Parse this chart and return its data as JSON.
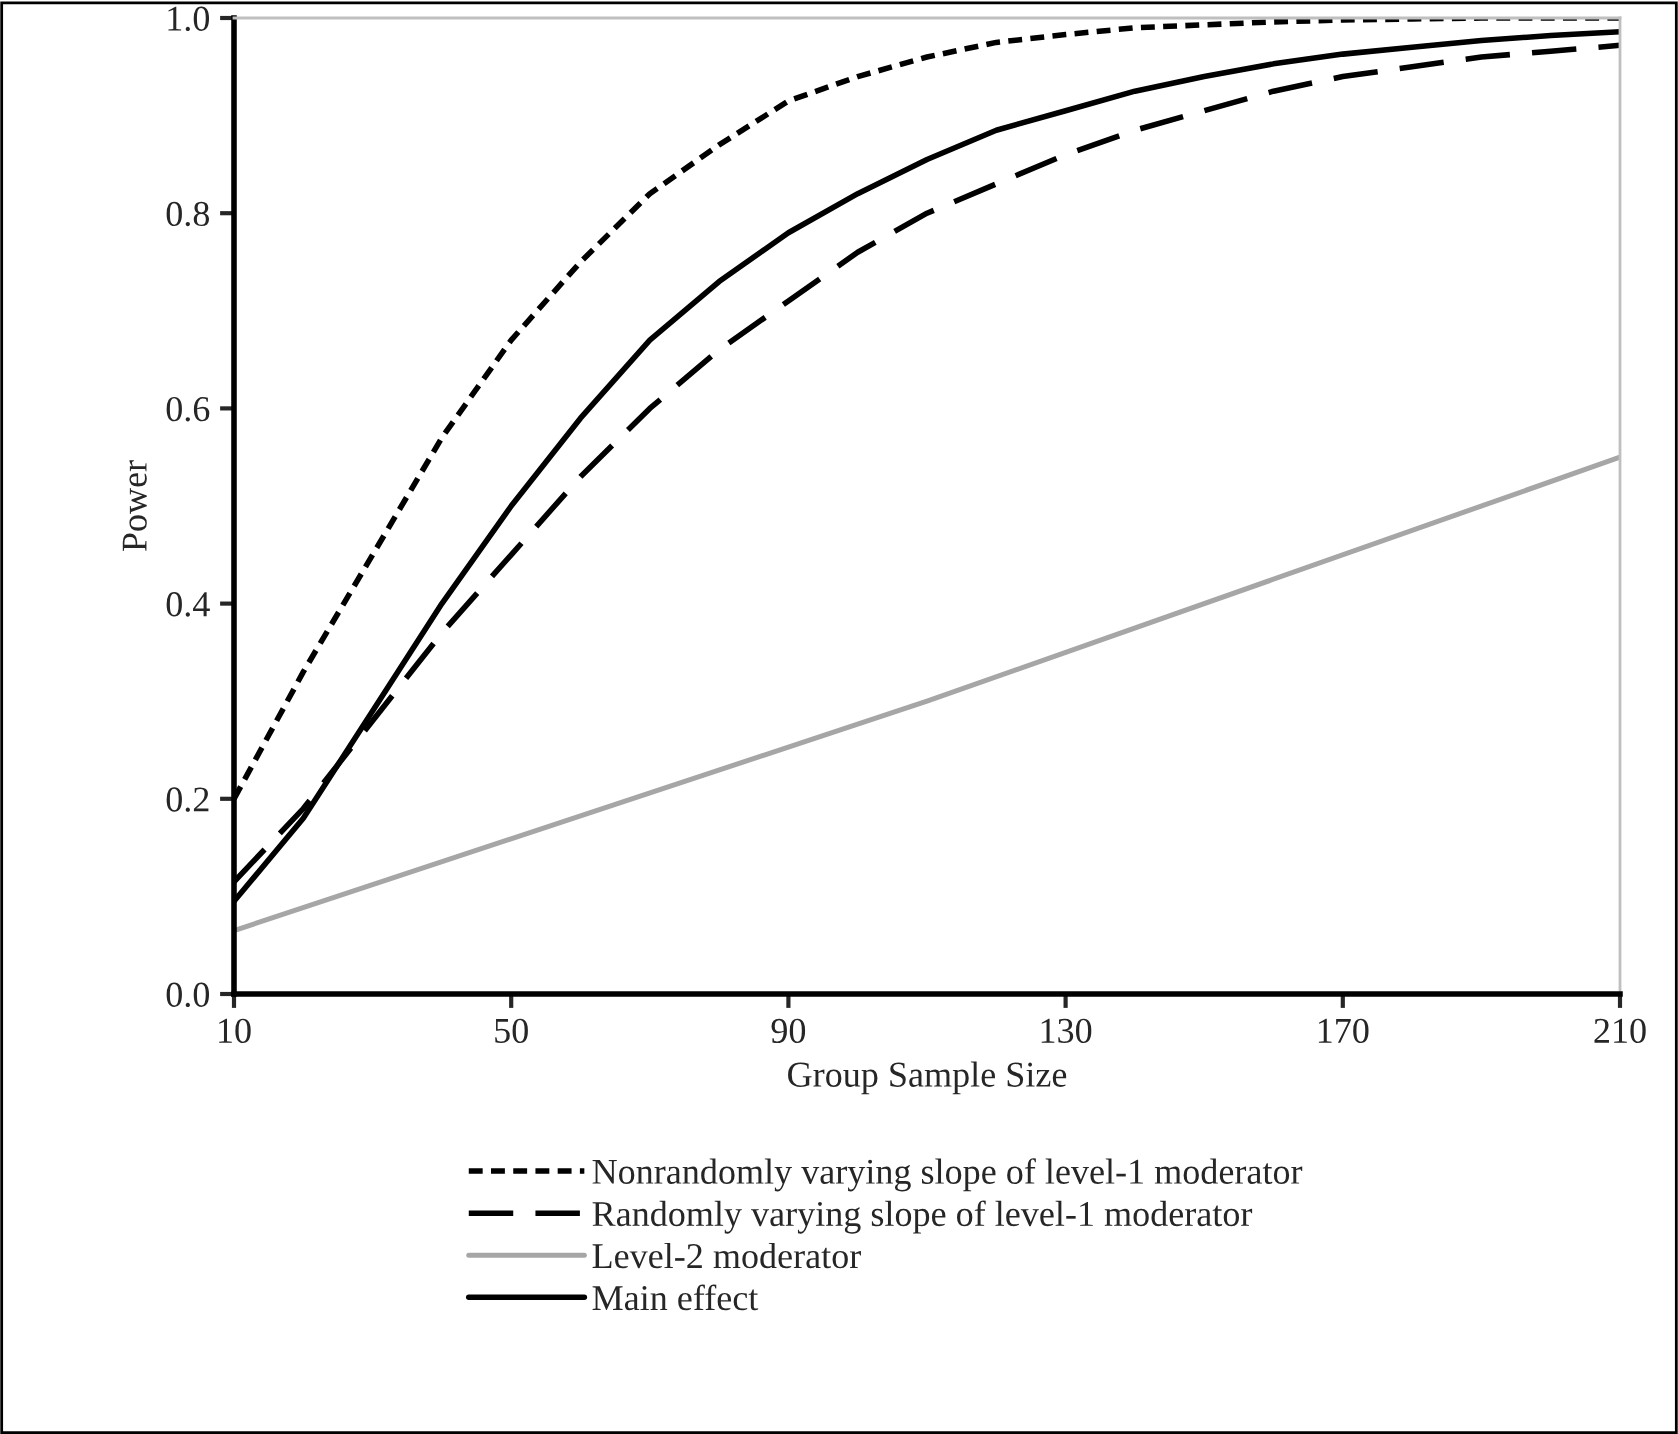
{
  "chart_data": {
    "type": "line",
    "xlabel": "Group Sample Size",
    "ylabel": "Power",
    "x": [
      10,
      20,
      30,
      40,
      50,
      60,
      70,
      80,
      90,
      100,
      110,
      120,
      130,
      140,
      150,
      160,
      170,
      180,
      190,
      200,
      210
    ],
    "series": [
      {
        "name": "Nonrandomly varying slope of level-1 moderator",
        "color": "#000000",
        "line_style": "dotted",
        "values": [
          0.2,
          0.33,
          0.45,
          0.57,
          0.67,
          0.75,
          0.82,
          0.87,
          0.915,
          0.94,
          0.96,
          0.975,
          0.983,
          0.99,
          0.993,
          0.996,
          0.998,
          0.999,
          1.0,
          1.0,
          1.0
        ]
      },
      {
        "name": "Randomly varying slope of level-1 moderator",
        "color": "#000000",
        "line_style": "dashed",
        "values": [
          0.115,
          0.19,
          0.28,
          0.37,
          0.45,
          0.53,
          0.6,
          0.66,
          0.71,
          0.76,
          0.8,
          0.83,
          0.86,
          0.885,
          0.905,
          0.925,
          0.94,
          0.95,
          0.96,
          0.966,
          0.972
        ]
      },
      {
        "name": "Level-2 moderator",
        "color": "#a6a6a6",
        "line_style": "solid",
        "x": [
          10,
          110,
          210
        ],
        "values": [
          0.065,
          0.3,
          0.55
        ]
      },
      {
        "name": "Main effect",
        "color": "#000000",
        "line_style": "solid",
        "values": [
          0.095,
          0.18,
          0.29,
          0.4,
          0.5,
          0.59,
          0.67,
          0.73,
          0.78,
          0.82,
          0.855,
          0.885,
          0.905,
          0.925,
          0.94,
          0.953,
          0.963,
          0.97,
          0.977,
          0.982,
          0.986
        ]
      }
    ],
    "xlim": [
      10,
      210
    ],
    "xticks": [
      10,
      50,
      90,
      130,
      170,
      210
    ],
    "ylim": [
      0,
      1
    ],
    "yticks": [
      {
        "value": 0,
        "label": "0.0"
      },
      {
        "value": 0.2,
        "label": "0.2"
      },
      {
        "value": 0.4,
        "label": "0.4"
      },
      {
        "value": 0.6,
        "label": "0.6"
      },
      {
        "value": 0.8,
        "label": "0.8"
      },
      {
        "value": 1,
        "label": "1.0"
      }
    ],
    "legend": "bottom",
    "grid": false,
    "marker": "none"
  }
}
